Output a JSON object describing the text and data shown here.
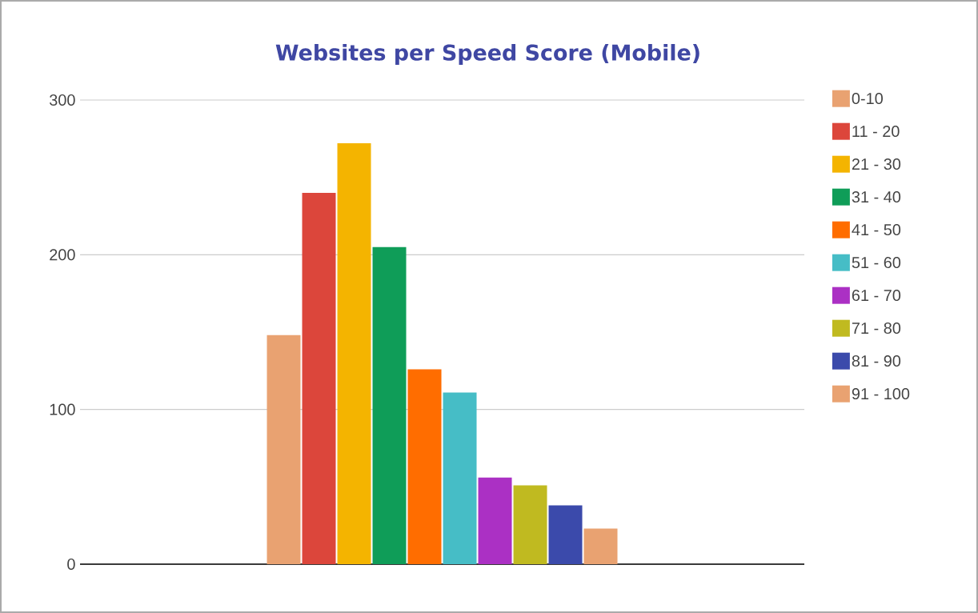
{
  "chart_data": {
    "type": "bar",
    "title": "Websites per Speed Score (Mobile)",
    "categories": [
      null
    ],
    "series": [
      {
        "name": "0-10",
        "color": "#e9a271",
        "values": [
          148
        ]
      },
      {
        "name": "11 - 20",
        "color": "#dc463b",
        "values": [
          240
        ]
      },
      {
        "name": "21 - 30",
        "color": "#f4b400",
        "values": [
          272
        ]
      },
      {
        "name": "31 - 40",
        "color": "#0f9d58",
        "values": [
          205
        ]
      },
      {
        "name": "41 - 50",
        "color": "#ff6d00",
        "values": [
          126
        ]
      },
      {
        "name": "51 - 60",
        "color": "#46bdc6",
        "values": [
          111
        ]
      },
      {
        "name": "61 - 70",
        "color": "#ab30c4",
        "values": [
          56
        ]
      },
      {
        "name": "71 - 80",
        "color": "#c0ba20",
        "values": [
          51
        ]
      },
      {
        "name": "81 - 90",
        "color": "#3b4aab",
        "values": [
          38
        ]
      },
      {
        "name": "91 - 100",
        "color": "#e9a271",
        "values": [
          23
        ]
      }
    ],
    "ylim": [
      0,
      300
    ],
    "yticks": [
      0,
      100,
      200,
      300
    ],
    "grid": "y",
    "legend": "right"
  }
}
